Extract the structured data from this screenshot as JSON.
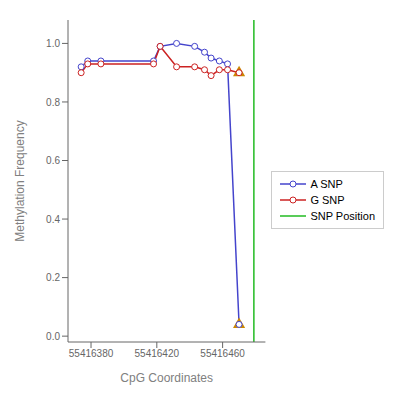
{
  "chart_data": {
    "type": "line",
    "xlabel": "CpG Coordinates",
    "ylabel": "Methylation Frequency",
    "x": [
      55416374,
      55416378,
      55416386,
      55416418,
      55416422,
      55416432,
      55416443,
      55416449,
      55416453,
      55416458,
      55416463,
      55416470
    ],
    "series": [
      {
        "name": "A SNP",
        "color": "#4444cc",
        "marker": "circle",
        "line_style": "solid",
        "values": [
          0.92,
          0.94,
          0.94,
          0.94,
          0.99,
          1.0,
          0.99,
          0.97,
          0.95,
          0.94,
          0.93,
          0.04
        ]
      },
      {
        "name": "G SNP",
        "color": "#cc2222",
        "marker": "circle",
        "line_style": "solid",
        "values": [
          0.9,
          0.93,
          0.93,
          0.93,
          0.99,
          0.92,
          0.92,
          0.91,
          0.89,
          0.91,
          0.91,
          0.9
        ]
      }
    ],
    "reference_lines": [
      {
        "name": "SNP Position",
        "x": 55416479,
        "color": "#22bb22"
      }
    ],
    "markers": {
      "color": "#cc8800",
      "marker": "triangle",
      "x": [
        55416470,
        55416470
      ],
      "y": [
        0.04,
        0.9
      ]
    },
    "xlim": [
      55416366,
      55416486
    ],
    "ylim": [
      -0.02,
      1.08
    ],
    "xticks": [
      55416380,
      55416420,
      55416460
    ],
    "yticks": [
      {
        "value": 0.0,
        "label": "0.0"
      },
      0.2,
      0.4,
      0.6,
      0.8,
      {
        "value": 1.0,
        "label": "1.0"
      }
    ],
    "legend": "right"
  }
}
